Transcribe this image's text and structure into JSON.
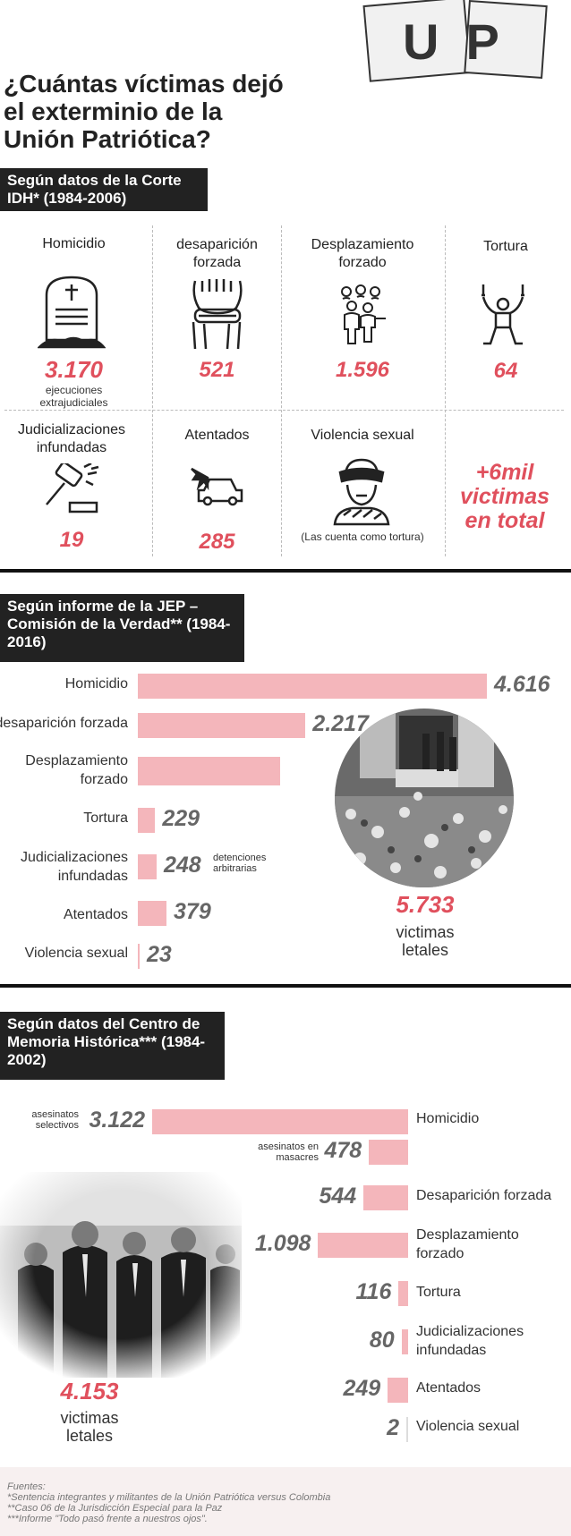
{
  "header": {
    "title": "¿Cuántas víctimas dejó el exterminio de la Unión Patriótica?",
    "sign_letters": "UP"
  },
  "section1": {
    "label": "Según datos de la Corte IDH* (1984-2006)",
    "cells": [
      {
        "title": "Homicidio",
        "value": "3.170",
        "note": "ejecuciones extrajudiciales",
        "icon": "tombstone-icon"
      },
      {
        "title": "desaparición forzada",
        "value": "521",
        "icon": "bound-hands-icon"
      },
      {
        "title": "Desplazamiento forzado",
        "value": "1.596",
        "icon": "displaced-people-icon"
      },
      {
        "title": "Tortura",
        "value": "64",
        "icon": "hanging-person-icon"
      },
      {
        "title": "Judicializaciones infundadas",
        "value": "19",
        "icon": "gavel-icon"
      },
      {
        "title": "Atentados",
        "value": "285",
        "icon": "car-bomb-icon"
      },
      {
        "title": "Violencia sexual",
        "value": "",
        "note": "(Las cuenta como tortura)",
        "icon": "blindfolded-person-icon"
      }
    ],
    "total": "+6mil victimas en total"
  },
  "section2": {
    "label": "Según informe de la JEP – Comisión de la Verdad** (1984-2016)",
    "rows": [
      {
        "category": "Homicidio",
        "value": 4616,
        "display": "4.616"
      },
      {
        "category": "desaparición forzada",
        "value": 2217,
        "display": "2.217"
      },
      {
        "category": "Desplazamiento forzado",
        "value": 1880,
        "display": ""
      },
      {
        "category": "Tortura",
        "value": 229,
        "display": "229"
      },
      {
        "category": "Judicializaciones infundadas",
        "value": 248,
        "display": "248",
        "note": "detenciones arbitrarias"
      },
      {
        "category": "Atentados",
        "value": 379,
        "display": "379"
      },
      {
        "category": "Violencia sexual",
        "value": 23,
        "display": "23"
      }
    ],
    "total_value": "5.733",
    "total_label": "victimas letales"
  },
  "section3": {
    "label": "Según datos del Centro de Memoria Histórica*** (1984-2002)",
    "rows": [
      {
        "category": "Homicidio",
        "value": 3122,
        "display": "3.122",
        "note": "asesinatos selectivos"
      },
      {
        "category": "",
        "value": 478,
        "display": "478",
        "note": "asesinatos en masacres"
      },
      {
        "category": "Desaparición forzada",
        "value": 544,
        "display": "544"
      },
      {
        "category": "Desplazamiento forzado",
        "value": 1098,
        "display": "1.098"
      },
      {
        "category": "Tortura",
        "value": 116,
        "display": "116"
      },
      {
        "category": "Judicializaciones infundadas",
        "value": 80,
        "display": "80"
      },
      {
        "category": "Atentados",
        "value": 249,
        "display": "249"
      },
      {
        "category": "Violencia sexual",
        "value": 2,
        "display": "2"
      }
    ],
    "total_value": "4.153",
    "total_label": "victimas letales"
  },
  "footer": {
    "heading": "Fuentes:",
    "lines": [
      "*Sentencia integrantes y militantes de la Unión Patriótica versus Colombia",
      "**Caso 06 de la Jurisdicción Especial para la Paz",
      "***Informe \"Todo pasó frente a nuestros ojos\"."
    ]
  },
  "colors": {
    "accent_red": "#e0505d",
    "bar_pink": "#f4b6bb",
    "dark": "#222222"
  }
}
